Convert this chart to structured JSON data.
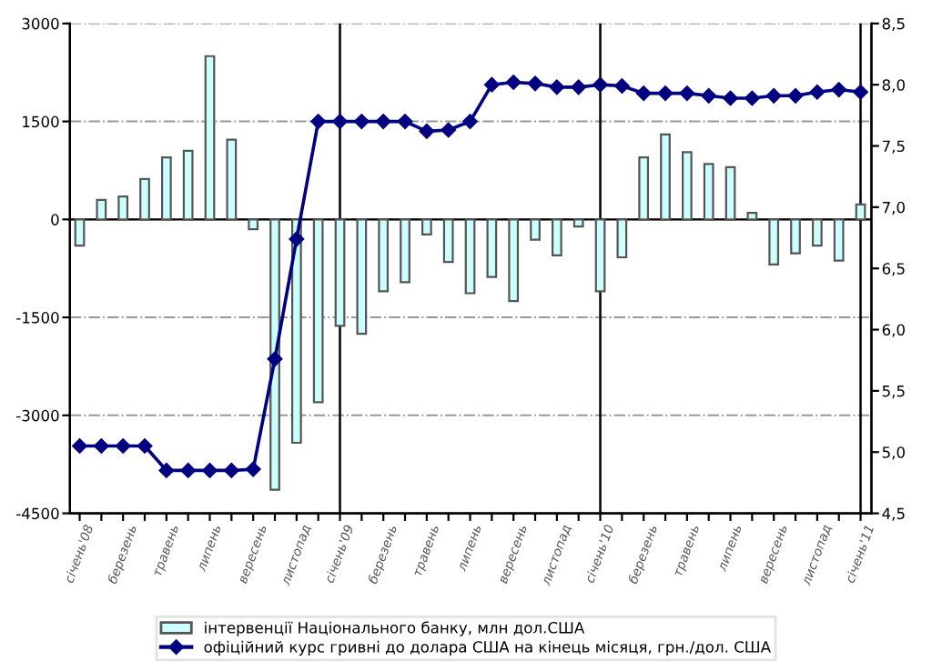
{
  "chart_data": {
    "type": "bar",
    "categories": [
      "січень'08",
      null,
      "березень",
      null,
      "травень",
      null,
      "липень",
      null,
      "вересень",
      null,
      "листопад",
      null,
      "січень'09",
      null,
      "березень",
      null,
      "травень",
      null,
      "липень",
      null,
      "вересень",
      null,
      "листопад",
      null,
      "січень'10",
      null,
      "березень",
      null,
      "травень",
      null,
      "липень",
      null,
      "вересень",
      null,
      "листопад",
      null,
      "січень'11"
    ],
    "series": [
      {
        "name": "інтервенції Національного банку, млн дол.США",
        "color": "#ccffff",
        "values": [
          -400,
          300,
          350,
          620,
          950,
          1050,
          2500,
          1220,
          -150,
          -4140,
          -3420,
          -2800,
          -1630,
          -1750,
          -1100,
          -960,
          -230,
          -650,
          -1130,
          -880,
          -1250,
          -310,
          -550,
          -110,
          -1100,
          -580,
          950,
          1300,
          1030,
          850,
          800,
          100,
          -690,
          -520,
          -400,
          -630,
          230
        ]
      },
      {
        "name": "офіційний курс гривні до долара США на кінець місяця, грн./дол. США",
        "type": "line",
        "axis": "y2",
        "color": "#000080",
        "marker": "diamond",
        "values": [
          5.05,
          5.05,
          5.05,
          5.05,
          4.85,
          4.85,
          4.85,
          4.85,
          4.86,
          5.76,
          6.74,
          7.7,
          7.7,
          7.7,
          7.7,
          7.7,
          7.62,
          7.63,
          7.7,
          8.0,
          8.02,
          8.01,
          7.98,
          7.98,
          8.0,
          7.99,
          7.93,
          7.93,
          7.93,
          7.91,
          7.89,
          7.89,
          7.91,
          7.91,
          7.94,
          7.96,
          7.94
        ]
      }
    ],
    "ylim": [
      -4500,
      3000
    ],
    "yticks": [
      -4500,
      -3000,
      -1500,
      0,
      1500,
      3000
    ],
    "y2lim": [
      4.5,
      8.5
    ],
    "y2ticks": [
      {
        "value": 4.5,
        "label": "4,5"
      },
      {
        "value": 5.0,
        "label": "5,0"
      },
      {
        "value": 5.5,
        "label": "5,5"
      },
      {
        "value": 6.0,
        "label": "6,0"
      },
      {
        "value": 6.5,
        "label": "6,5"
      },
      {
        "value": 7.0,
        "label": "7,0"
      },
      {
        "value": 7.5,
        "label": "7,5"
      },
      {
        "value": 8.0,
        "label": "8,0"
      },
      {
        "value": 8.5,
        "label": "8,5"
      }
    ],
    "ref_lines": [
      {
        "axis": "x",
        "value": "січень'09",
        "color": "#000000"
      },
      {
        "axis": "x",
        "value": "січень'10",
        "color": "#000000"
      },
      {
        "axis": "x",
        "value": "січень'11",
        "color": "#000000"
      }
    ],
    "grid": "y",
    "legend": "bottom"
  }
}
